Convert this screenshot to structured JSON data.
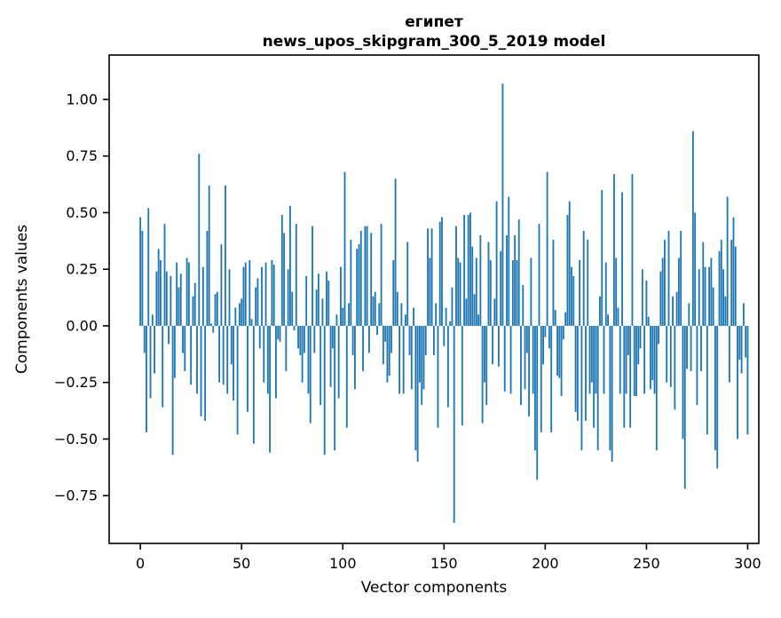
{
  "figure": {
    "background": "#ffffff",
    "title": "египет",
    "subtitle": "news_upos_skipgram_300_5_2019 model"
  },
  "chart_data": {
    "type": "bar",
    "title": "египет",
    "subtitle": "news_upos_skipgram_300_5_2019 model",
    "xlabel": "Vector components",
    "ylabel": "Components values",
    "x_description": "vector component index, one bar per component",
    "x_start": 0,
    "x_step": 1,
    "n_components": 301,
    "x_ticks": [
      0,
      50,
      100,
      150,
      200,
      250,
      300
    ],
    "y_ticks": [
      1.0,
      0.75,
      0.5,
      0.25,
      0.0,
      -0.25,
      -0.5,
      -0.75
    ],
    "y_tick_labels": [
      "1.00",
      "0.75",
      "0.50",
      "0.25",
      "0.00",
      "−0.25",
      "−0.50",
      "−0.75"
    ],
    "xlim": [
      -15.4,
      305.5
    ],
    "ylim": [
      -0.961,
      1.196
    ],
    "grid": false,
    "legend": null,
    "bar_color": "#1f77b4",
    "values": [
      0.48,
      0.42,
      -0.12,
      -0.47,
      0.52,
      -0.32,
      0.05,
      -0.21,
      0.24,
      0.34,
      0.29,
      -0.36,
      0.45,
      0.24,
      -0.08,
      0.22,
      -0.57,
      -0.23,
      0.28,
      0.17,
      0.23,
      -0.12,
      -0.2,
      0.3,
      0.28,
      -0.26,
      0.13,
      0.19,
      -0.3,
      0.76,
      -0.4,
      0.26,
      -0.42,
      0.42,
      0.62,
      0.01,
      -0.03,
      0.14,
      0.15,
      -0.25,
      0.36,
      -0.26,
      0.62,
      -0.3,
      0.25,
      -0.17,
      -0.33,
      0.08,
      -0.48,
      0.1,
      0.12,
      0.26,
      0.28,
      -0.38,
      0.29,
      0.03,
      -0.52,
      0.17,
      0.21,
      -0.1,
      0.26,
      -0.25,
      0.28,
      -0.3,
      -0.56,
      0.29,
      0.27,
      -0.32,
      -0.06,
      -0.07,
      0.49,
      0.41,
      -0.2,
      0.25,
      0.53,
      0.15,
      -0.02,
      0.45,
      -0.1,
      -0.13,
      -0.25,
      -0.12,
      0.22,
      -0.3,
      -0.43,
      0.44,
      -0.12,
      0.16,
      0.23,
      -0.35,
      0.12,
      -0.57,
      0.24,
      0.2,
      -0.27,
      -0.1,
      -0.55,
      0.05,
      -0.32,
      0.26,
      0.08,
      0.68,
      -0.45,
      0.1,
      0.38,
      -0.13,
      -0.28,
      0.34,
      0.36,
      0.42,
      -0.2,
      0.44,
      0.44,
      -0.12,
      0.41,
      0.13,
      0.15,
      -0.04,
      0.1,
      0.45,
      -0.17,
      -0.07,
      -0.25,
      -0.22,
      -0.12,
      0.29,
      0.65,
      0.15,
      -0.3,
      0.1,
      -0.3,
      0.05,
      0.37,
      -0.13,
      -0.28,
      0.08,
      -0.55,
      -0.6,
      -0.25,
      -0.35,
      -0.28,
      -0.13,
      0.43,
      0.3,
      0.43,
      -0.13,
      0.1,
      -0.45,
      0.46,
      0.48,
      -0.09,
      0.08,
      -0.36,
      0.02,
      0.17,
      -0.87,
      0.44,
      0.3,
      0.28,
      -0.44,
      0.49,
      0.12,
      0.49,
      0.5,
      0.35,
      0.14,
      0.3,
      0.05,
      0.4,
      -0.43,
      -0.25,
      -0.35,
      0.37,
      0.29,
      -0.17,
      0.12,
      0.55,
      -0.18,
      0.33,
      1.07,
      -0.29,
      0.4,
      0.57,
      -0.3,
      0.29,
      0.4,
      0.29,
      0.47,
      -0.35,
      0.18,
      -0.28,
      -0.12,
      -0.4,
      0.3,
      -0.3,
      -0.55,
      -0.68,
      0.45,
      -0.47,
      -0.17,
      -0.05,
      0.68,
      -0.1,
      -0.47,
      0.38,
      0.07,
      -0.22,
      -0.23,
      -0.31,
      -0.06,
      0.06,
      0.49,
      0.55,
      0.26,
      0.22,
      -0.38,
      -0.42,
      0.29,
      -0.55,
      0.42,
      -0.42,
      0.38,
      -0.3,
      -0.25,
      -0.45,
      -0.3,
      -0.55,
      0.13,
      0.6,
      -0.3,
      0.28,
      0.05,
      -0.55,
      -0.6,
      0.67,
      0.3,
      0.08,
      -0.3,
      0.59,
      -0.45,
      -0.3,
      -0.13,
      -0.45,
      0.67,
      -0.31,
      -0.31,
      -0.17,
      -0.1,
      0.25,
      -0.3,
      0.2,
      0.04,
      -0.28,
      -0.24,
      -0.3,
      -0.55,
      -0.08,
      0.24,
      0.3,
      0.38,
      -0.25,
      0.42,
      -0.27,
      0.13,
      -0.37,
      0.15,
      0.3,
      0.42,
      -0.5,
      -0.72,
      -0.19,
      0.1,
      -0.2,
      0.86,
      0.5,
      -0.35,
      0.25,
      -0.2,
      0.37,
      0.26,
      -0.48,
      0.26,
      0.3,
      0.17,
      -0.55,
      -0.63,
      0.33,
      0.38,
      0.25,
      0.13,
      0.57,
      -0.25,
      0.38,
      0.48,
      0.35,
      -0.5,
      -0.15,
      -0.21,
      0.1,
      -0.14,
      -0.48
    ]
  }
}
